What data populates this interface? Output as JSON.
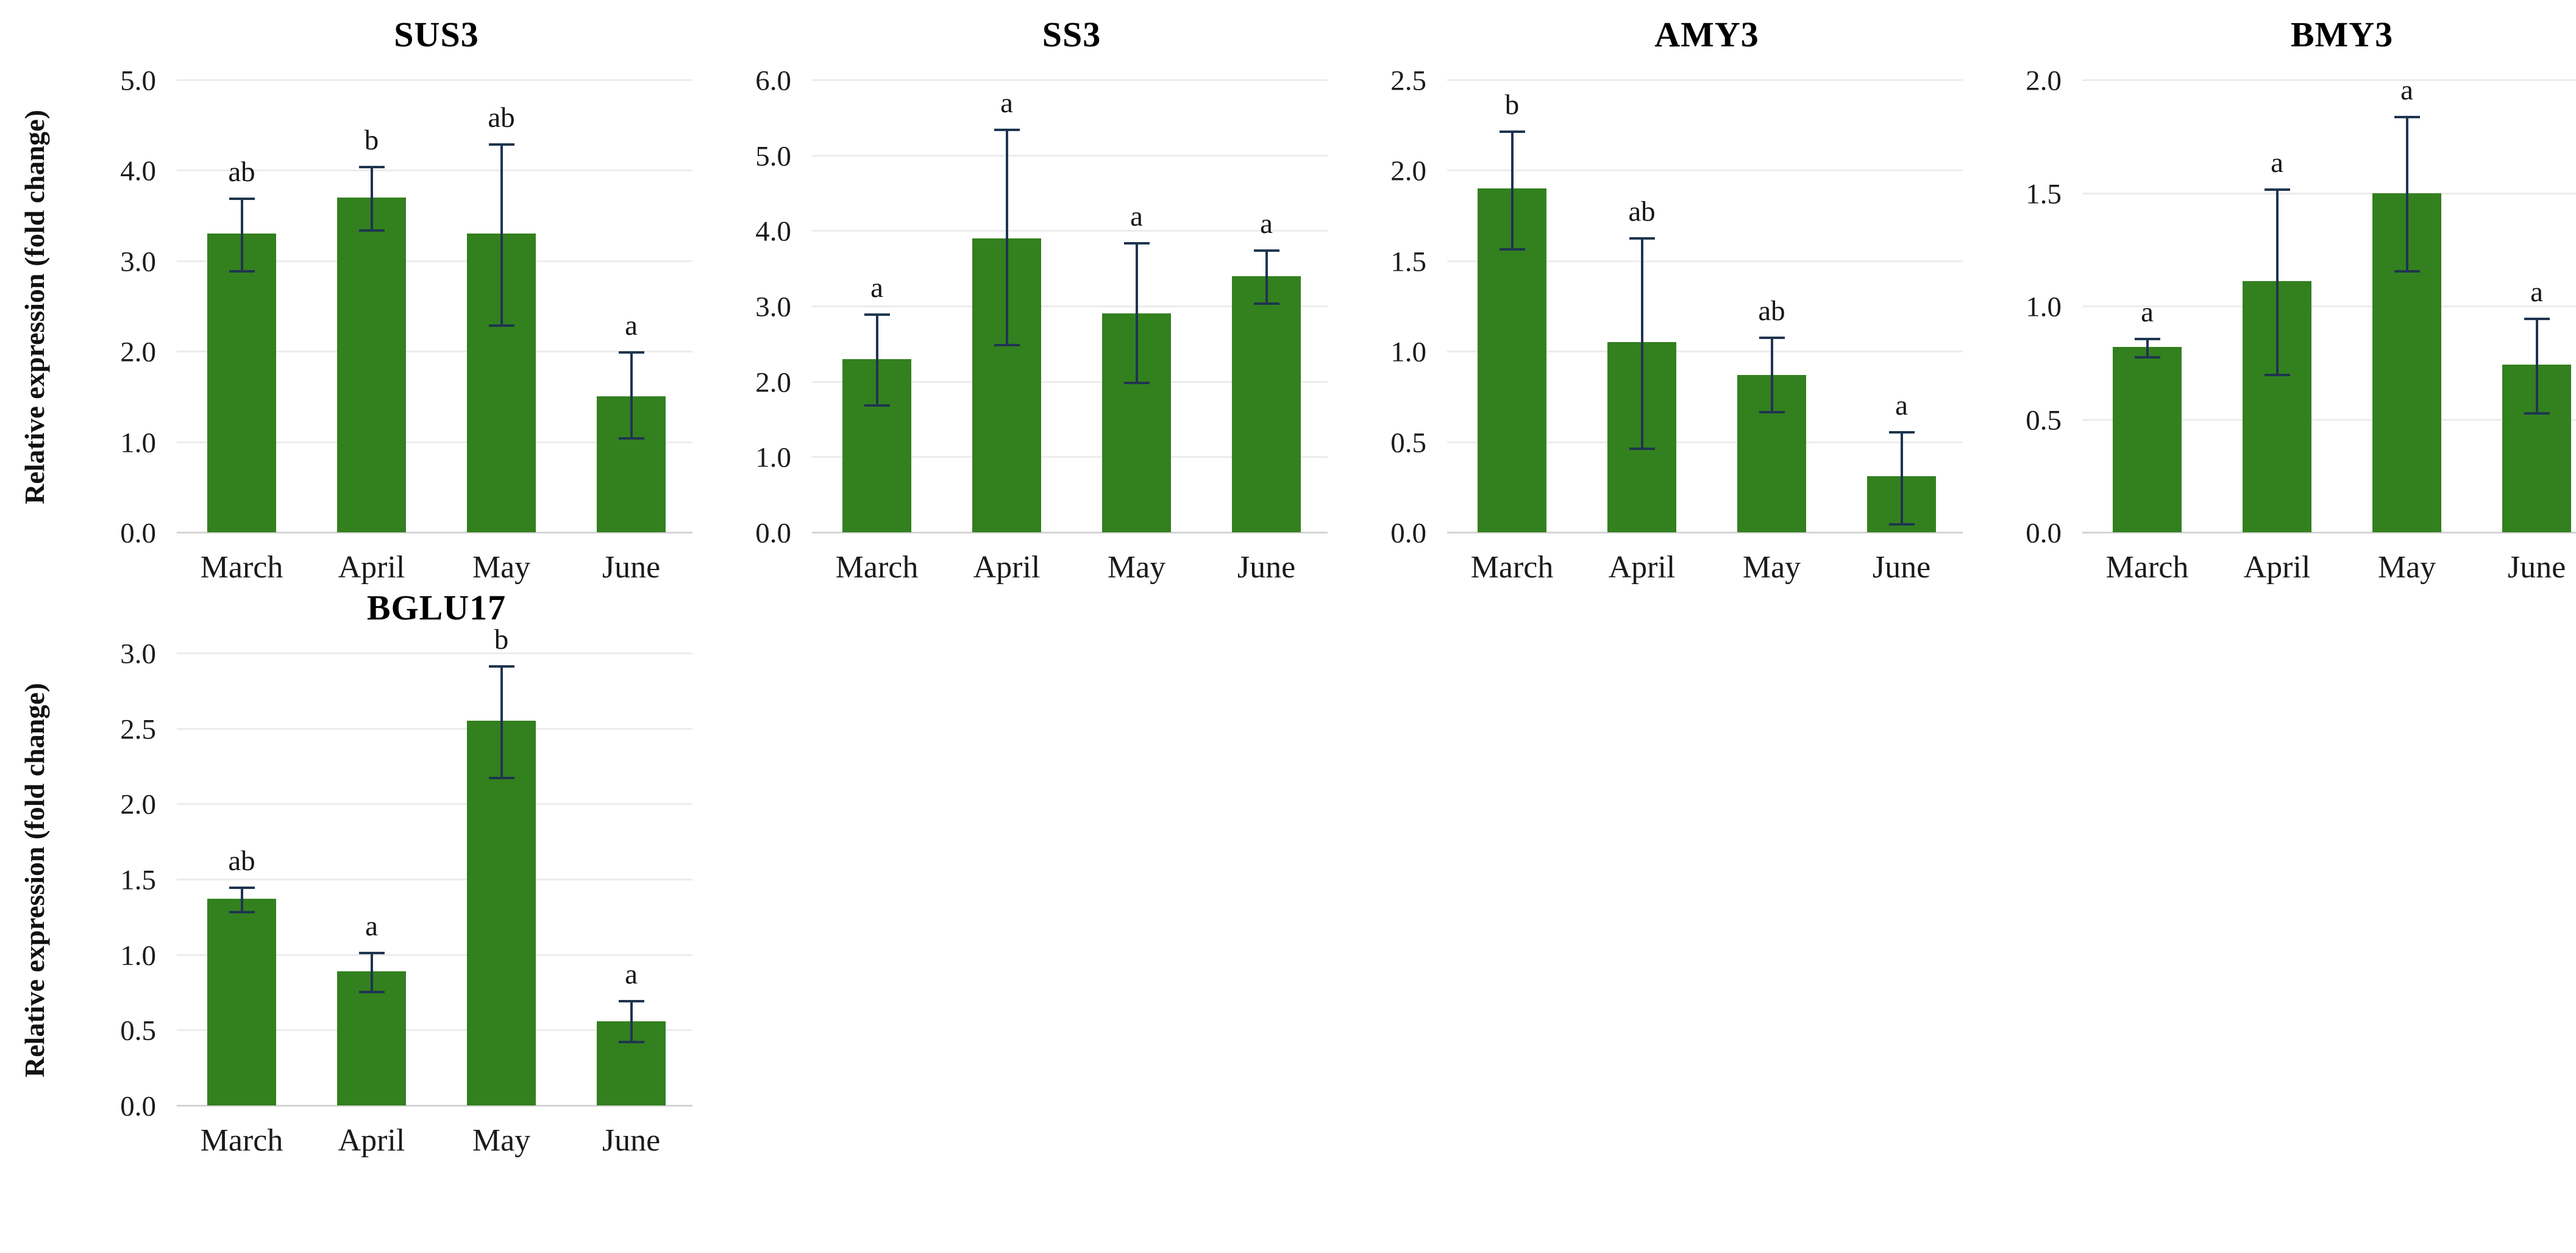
{
  "figure": {
    "description_title": "Relative expression bar charts",
    "y_axis_label": "Relative expression (fold change)"
  },
  "colors": {
    "bar_fill": "#33801f",
    "error_bar": "#1f3550",
    "gridline": "#ececec",
    "axis_line": "#d4d4d4",
    "text": "#1b1b1b"
  },
  "chart_data": [
    {
      "type": "bar",
      "title": "SUS3",
      "ylabel": "Relative expression (fold change)",
      "categories": [
        "March",
        "April",
        "May",
        "June"
      ],
      "values": [
        3.3,
        3.7,
        3.3,
        1.5
      ],
      "error_low": [
        2.9,
        3.35,
        2.3,
        1.05
      ],
      "error_high": [
        3.7,
        4.05,
        4.3,
        2.0
      ],
      "sig_letters": [
        "ab",
        "b",
        "ab",
        "a"
      ],
      "ylim": [
        0,
        5
      ],
      "ytick_step": 1.0,
      "ytick_format_decimals": 1,
      "grid": true,
      "legend": "none"
    },
    {
      "type": "bar",
      "title": "SS3",
      "ylabel": "",
      "categories": [
        "March",
        "April",
        "May",
        "June"
      ],
      "values": [
        2.3,
        3.9,
        2.9,
        3.4
      ],
      "error_low": [
        1.7,
        2.5,
        2.0,
        3.05
      ],
      "error_high": [
        2.9,
        5.35,
        3.85,
        3.75
      ],
      "sig_letters": [
        "a",
        "a",
        "a",
        "a"
      ],
      "ylim": [
        0,
        6
      ],
      "ytick_step": 1.0,
      "ytick_format_decimals": 1,
      "grid": true,
      "legend": "none"
    },
    {
      "type": "bar",
      "title": "AMY3",
      "ylabel": "",
      "categories": [
        "March",
        "April",
        "May",
        "June"
      ],
      "values": [
        1.9,
        1.05,
        0.87,
        0.31
      ],
      "error_low": [
        1.57,
        0.47,
        0.67,
        0.05
      ],
      "error_high": [
        2.22,
        1.63,
        1.08,
        0.56
      ],
      "sig_letters": [
        "b",
        "ab",
        "ab",
        "a"
      ],
      "ylim": [
        0,
        2.5
      ],
      "ytick_step": 0.5,
      "ytick_format_decimals": 1,
      "grid": true,
      "legend": "none"
    },
    {
      "type": "bar",
      "title": "BMY3",
      "ylabel": "",
      "categories": [
        "March",
        "April",
        "May",
        "June"
      ],
      "values": [
        0.82,
        1.11,
        1.5,
        0.74
      ],
      "error_low": [
        0.78,
        0.7,
        1.16,
        0.53
      ],
      "error_high": [
        0.86,
        1.52,
        1.84,
        0.95
      ],
      "sig_letters": [
        "a",
        "a",
        "a",
        "a"
      ],
      "ylim": [
        0,
        2
      ],
      "ytick_step": 0.5,
      "ytick_format_decimals": 1,
      "grid": true,
      "legend": "none"
    },
    {
      "type": "bar",
      "title": "BGLU17",
      "ylabel": "Relative expression (fold change)",
      "categories": [
        "March",
        "April",
        "May",
        "June"
      ],
      "values": [
        1.37,
        0.89,
        2.55,
        0.56
      ],
      "error_low": [
        1.29,
        0.76,
        2.18,
        0.43
      ],
      "error_high": [
        1.45,
        1.02,
        2.92,
        0.7
      ],
      "sig_letters": [
        "ab",
        "a",
        "b",
        "a"
      ],
      "ylim": [
        0,
        3
      ],
      "ytick_step": 0.5,
      "ytick_format_decimals": 1,
      "grid": true,
      "legend": "none"
    }
  ]
}
